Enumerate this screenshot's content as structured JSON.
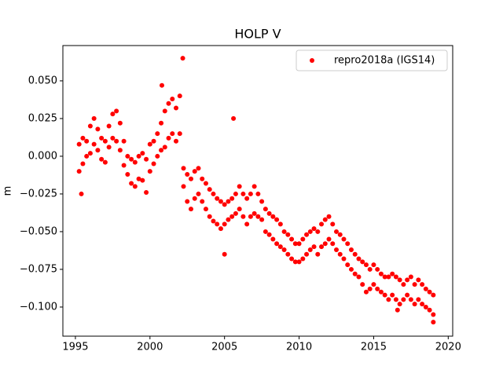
{
  "chart_data": {
    "type": "scatter",
    "title": "HOLP V",
    "ylabel": "m",
    "xlim": [
      1994.16,
      2020.3
    ],
    "ylim": [
      -0.1193,
      0.0734
    ],
    "xticks": [
      1995,
      2000,
      2005,
      2010,
      2015,
      2020
    ],
    "yticks": [
      {
        "value": -0.1,
        "label": "−0.100"
      },
      {
        "value": -0.075,
        "label": "−0.075"
      },
      {
        "value": -0.05,
        "label": "−0.050"
      },
      {
        "value": -0.025,
        "label": "−0.025"
      },
      {
        "value": 0,
        "label": "0.000"
      },
      0.025,
      {
        "value": 0.05,
        "label": "0.050"
      }
    ],
    "legend": "upper right",
    "series": [
      {
        "name": "repro2018a (IGS14)",
        "color": "#ff0000",
        "x": [
          1995.25,
          1995.25,
          1995.5,
          1995.5,
          1995.75,
          1995.75,
          1996,
          1996,
          1996.25,
          1996.25,
          1996.5,
          1996.5,
          1996.75,
          1996.75,
          1997,
          1997,
          1997.25,
          1997.25,
          1997.5,
          1997.5,
          1997.75,
          1997.75,
          1998,
          1998,
          1998.25,
          1998.25,
          1998.5,
          1998.5,
          1998.75,
          1998.75,
          1999,
          1999,
          1999.25,
          1999.25,
          1999.5,
          1999.5,
          1999.75,
          1999.75,
          2000,
          2000,
          2000.25,
          2000.25,
          2000.5,
          2000.5,
          2000.75,
          2000.75,
          2001,
          2001,
          2001.25,
          2001.25,
          2001.5,
          2001.5,
          2001.75,
          2001.75,
          2002,
          2002,
          2002.25,
          2002.25,
          2002.5,
          2002.5,
          2002.75,
          2002.75,
          2003,
          2003,
          2003.25,
          2003.25,
          2003.5,
          2003.5,
          2003.75,
          2003.75,
          2004,
          2004,
          2004.25,
          2004.25,
          2004.5,
          2004.5,
          2004.75,
          2004.75,
          2005,
          2005,
          2005.25,
          2005.25,
          2005.5,
          2005.5,
          2005.75,
          2005.75,
          2006,
          2006,
          2006.25,
          2006.25,
          2006.5,
          2006.5,
          2006.75,
          2006.75,
          2007,
          2007,
          2007.25,
          2007.25,
          2007.5,
          2007.5,
          2007.75,
          2007.75,
          2008,
          2008,
          2008.25,
          2008.25,
          2008.5,
          2008.5,
          2008.75,
          2008.75,
          2009,
          2009,
          2009.25,
          2009.25,
          2009.5,
          2009.5,
          2009.75,
          2009.75,
          2010,
          2010,
          2010.25,
          2010.25,
          2010.5,
          2010.5,
          2010.75,
          2010.75,
          2011,
          2011,
          2011.25,
          2011.25,
          2011.5,
          2011.5,
          2011.75,
          2011.75,
          2012,
          2012,
          2012.25,
          2012.25,
          2012.5,
          2012.5,
          2012.75,
          2012.75,
          2013,
          2013,
          2013.25,
          2013.25,
          2013.5,
          2013.5,
          2013.75,
          2013.75,
          2014,
          2014,
          2014.25,
          2014.25,
          2014.5,
          2014.5,
          2014.75,
          2014.75,
          2015,
          2015,
          2015.25,
          2015.25,
          2015.5,
          2015.5,
          2015.75,
          2015.75,
          2016,
          2016,
          2016.25,
          2016.25,
          2016.5,
          2016.5,
          2016.75,
          2016.75,
          2017,
          2017,
          2017.25,
          2017.25,
          2017.5,
          2017.5,
          2017.75,
          2017.75,
          2018,
          2018,
          2018.25,
          2018.25,
          2018.5,
          2018.5,
          2018.75,
          2018.75,
          2019,
          2019,
          2002.2,
          2005.6,
          2005,
          2000.8,
          1995.4,
          2016.6,
          2019
        ],
        "values": [
          0.008,
          -0.01,
          0.012,
          -0.005,
          0.01,
          0,
          0.02,
          0.002,
          0.025,
          0.008,
          0.018,
          0.004,
          0.012,
          -0.002,
          0.01,
          -0.004,
          0.02,
          0.006,
          0.028,
          0.012,
          0.03,
          0.01,
          0.022,
          0.004,
          0.01,
          -0.006,
          0,
          -0.012,
          -0.002,
          -0.018,
          -0.004,
          -0.02,
          0,
          -0.015,
          0.002,
          -0.016,
          -0.002,
          -0.024,
          0.008,
          -0.01,
          0.01,
          -0.005,
          0.015,
          0,
          0.022,
          0.004,
          0.03,
          0.006,
          0.035,
          0.012,
          0.038,
          0.015,
          0.032,
          0.01,
          0.04,
          0.015,
          -0.008,
          -0.02,
          -0.012,
          -0.03,
          -0.015,
          -0.035,
          -0.01,
          -0.028,
          -0.008,
          -0.025,
          -0.015,
          -0.03,
          -0.018,
          -0.035,
          -0.022,
          -0.04,
          -0.025,
          -0.043,
          -0.028,
          -0.045,
          -0.03,
          -0.048,
          -0.032,
          -0.045,
          -0.03,
          -0.042,
          -0.028,
          -0.04,
          -0.025,
          -0.038,
          -0.02,
          -0.035,
          -0.025,
          -0.04,
          -0.028,
          -0.045,
          -0.025,
          -0.04,
          -0.02,
          -0.038,
          -0.025,
          -0.04,
          -0.03,
          -0.042,
          -0.035,
          -0.05,
          -0.038,
          -0.052,
          -0.04,
          -0.055,
          -0.042,
          -0.058,
          -0.045,
          -0.06,
          -0.05,
          -0.062,
          -0.052,
          -0.065,
          -0.055,
          -0.068,
          -0.058,
          -0.07,
          -0.058,
          -0.07,
          -0.055,
          -0.068,
          -0.052,
          -0.065,
          -0.05,
          -0.062,
          -0.048,
          -0.06,
          -0.05,
          -0.065,
          -0.045,
          -0.06,
          -0.042,
          -0.058,
          -0.04,
          -0.055,
          -0.045,
          -0.058,
          -0.05,
          -0.062,
          -0.052,
          -0.065,
          -0.055,
          -0.068,
          -0.058,
          -0.072,
          -0.062,
          -0.075,
          -0.065,
          -0.078,
          -0.068,
          -0.08,
          -0.07,
          -0.085,
          -0.072,
          -0.09,
          -0.075,
          -0.088,
          -0.072,
          -0.085,
          -0.075,
          -0.088,
          -0.078,
          -0.09,
          -0.08,
          -0.092,
          -0.08,
          -0.095,
          -0.078,
          -0.092,
          -0.08,
          -0.095,
          -0.082,
          -0.098,
          -0.085,
          -0.095,
          -0.082,
          -0.092,
          -0.08,
          -0.095,
          -0.085,
          -0.098,
          -0.082,
          -0.095,
          -0.085,
          -0.098,
          -0.088,
          -0.1,
          -0.09,
          -0.102,
          -0.092,
          -0.105,
          0.065,
          0.025,
          -0.065,
          0.047,
          -0.025,
          -0.102,
          -0.11
        ]
      }
    ]
  }
}
